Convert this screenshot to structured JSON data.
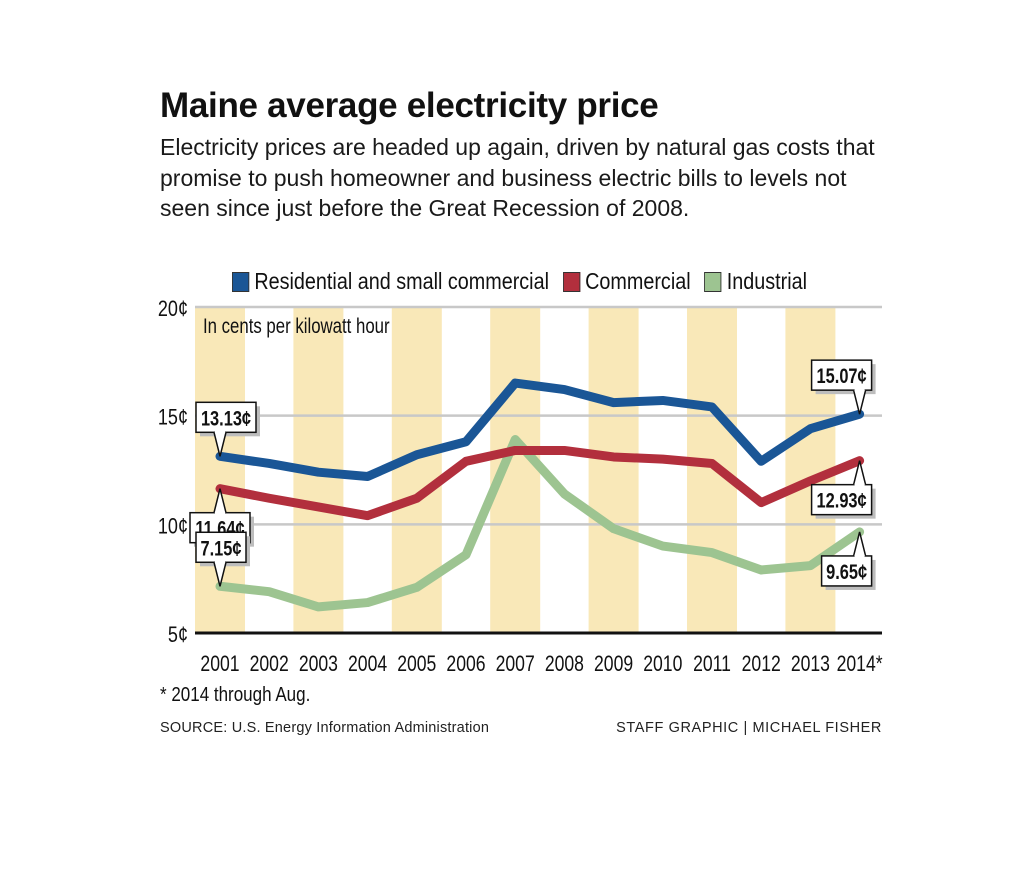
{
  "header": {
    "title": "Maine average electricity price",
    "subtitle": "Electricity prices are headed up again, driven by natural gas costs that promise to push homeowner and business electric bills to levels not seen since just before the Great Recession of 2008."
  },
  "footer": {
    "footnote": "* 2014 through Aug.",
    "source": "SOURCE: U.S. Energy Information Administration",
    "credit": "STAFF GRAPHIC | MICHAEL FISHER"
  },
  "chart_data": {
    "type": "line",
    "title": "Maine average electricity price",
    "ylabel": "In cents per kilowatt hour",
    "xlabel": "",
    "x": [
      "2001",
      "2002",
      "2003",
      "2004",
      "2005",
      "2006",
      "2007",
      "2008",
      "2009",
      "2010",
      "2011",
      "2012",
      "2013",
      "2014*"
    ],
    "ylim": [
      5,
      20
    ],
    "yticks": [
      5,
      10,
      15,
      20
    ],
    "ytick_labels": [
      "5¢",
      "10¢",
      "15¢",
      "20¢"
    ],
    "grid": true,
    "legend_position": "top",
    "shaded_years": [
      "2001",
      "2003",
      "2005",
      "2007",
      "2009",
      "2011",
      "2013"
    ],
    "shade_color": "#f9e8b8",
    "series": [
      {
        "name": "Residential and small commercial",
        "color": "#1a5696",
        "values": [
          13.13,
          12.8,
          12.4,
          12.2,
          13.2,
          13.8,
          16.5,
          16.2,
          15.6,
          15.7,
          15.4,
          12.9,
          14.4,
          15.07
        ],
        "callouts": [
          {
            "index": 0,
            "label": "13.13¢",
            "position": "above"
          },
          {
            "index": 13,
            "label": "15.07¢",
            "position": "above"
          }
        ]
      },
      {
        "name": "Commercial",
        "color": "#b22f3d",
        "values": [
          11.64,
          11.2,
          10.8,
          10.4,
          11.2,
          12.9,
          13.4,
          13.4,
          13.1,
          13.0,
          12.8,
          11.0,
          12.0,
          12.93
        ],
        "callouts": [
          {
            "index": 0,
            "label": "11.64¢",
            "position": "below"
          },
          {
            "index": 13,
            "label": "12.93¢",
            "position": "below"
          }
        ]
      },
      {
        "name": "Industrial",
        "color": "#9dc491",
        "values": [
          7.15,
          6.9,
          6.2,
          6.4,
          7.1,
          8.6,
          13.9,
          11.4,
          9.8,
          9.0,
          8.7,
          7.9,
          8.1,
          9.65
        ],
        "callouts": [
          {
            "index": 0,
            "label": "7.15¢",
            "position": "above"
          },
          {
            "index": 13,
            "label": "9.65¢",
            "position": "below"
          }
        ]
      }
    ]
  }
}
